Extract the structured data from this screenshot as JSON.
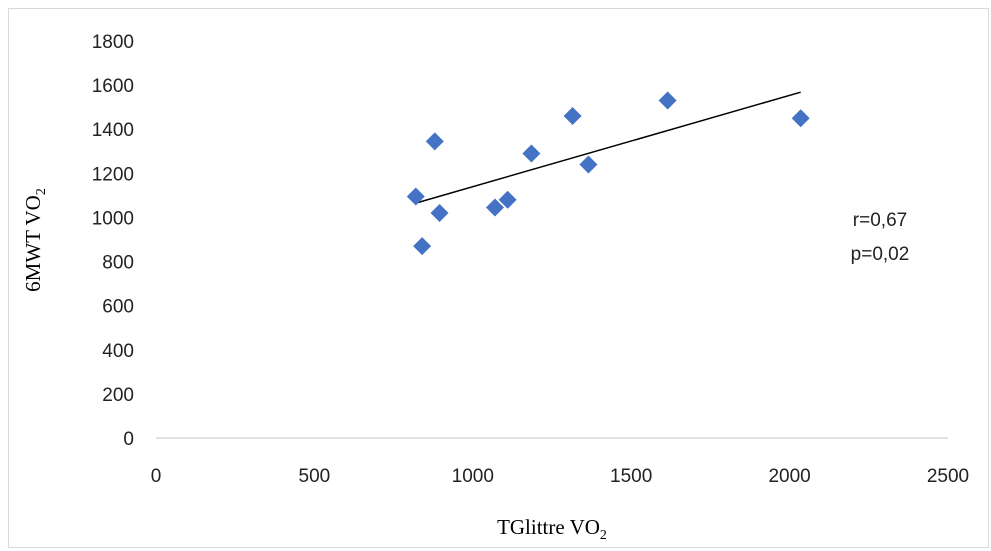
{
  "chart_data": {
    "type": "scatter",
    "title": "",
    "xlabel": {
      "main": "TGlittre VO",
      "subscript": "2"
    },
    "ylabel": {
      "main": "6MWT VO",
      "subscript": "2"
    },
    "xlim": [
      0,
      2500
    ],
    "ylim": [
      0,
      1800
    ],
    "x_ticks": [
      "0",
      "500",
      "1000",
      "1500",
      "2000",
      "2500"
    ],
    "y_ticks": [
      "0",
      "200",
      "400",
      "600",
      "800",
      "1000",
      "1200",
      "1400",
      "1600",
      "1800"
    ],
    "grid": false,
    "legend": "none",
    "marker": "diamond",
    "marker_color": "#4472C4",
    "points": [
      {
        "x": 820,
        "y": 1095
      },
      {
        "x": 840,
        "y": 870
      },
      {
        "x": 880,
        "y": 1345
      },
      {
        "x": 895,
        "y": 1020
      },
      {
        "x": 1070,
        "y": 1045
      },
      {
        "x": 1110,
        "y": 1080
      },
      {
        "x": 1185,
        "y": 1290
      },
      {
        "x": 1315,
        "y": 1460
      },
      {
        "x": 1365,
        "y": 1240
      },
      {
        "x": 1615,
        "y": 1530
      },
      {
        "x": 2035,
        "y": 1450
      }
    ],
    "trendline": {
      "x1": 820,
      "y1": 1065,
      "x2": 2035,
      "y2": 1568,
      "color": "#000000"
    },
    "annotations": [
      "r=0,67",
      "p=0,02"
    ]
  }
}
